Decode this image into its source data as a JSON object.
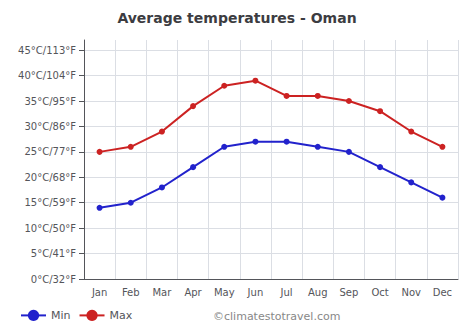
{
  "chart_data": {
    "type": "line",
    "title": "Average temperatures - Oman",
    "categories": [
      "Jan",
      "Feb",
      "Mar",
      "Apr",
      "May",
      "Jun",
      "Jul",
      "Aug",
      "Sep",
      "Oct",
      "Nov",
      "Dec"
    ],
    "series": [
      {
        "name": "Min",
        "color": "#2222cc",
        "marker": "circle",
        "values": [
          14,
          15,
          18,
          22,
          26,
          27,
          27,
          26,
          25,
          22,
          19,
          16
        ]
      },
      {
        "name": "Max",
        "color": "#cc2222",
        "marker": "circle",
        "values": [
          25,
          26,
          29,
          34,
          38,
          39,
          36,
          36,
          35,
          33,
          29,
          26
        ]
      }
    ],
    "ylim": [
      0,
      47
    ],
    "yticks": [
      {
        "value": 0,
        "label": "0°C/32°F"
      },
      {
        "value": 5,
        "label": "5°C/41°F"
      },
      {
        "value": 10,
        "label": "10°C/50°F"
      },
      {
        "value": 15,
        "label": "15°C/59°F"
      },
      {
        "value": 20,
        "label": "20°C/68°F"
      },
      {
        "value": 25,
        "label": "25°C/77°F"
      },
      {
        "value": 30,
        "label": "30°C/86°F"
      },
      {
        "value": 35,
        "label": "35°C/95°F"
      },
      {
        "value": 40,
        "label": "40°C/104°F"
      },
      {
        "value": 45,
        "label": "45°C/113°F"
      }
    ],
    "grid": true,
    "legend": "lower left",
    "annotations": [
      "©climatestotravel.com"
    ]
  }
}
